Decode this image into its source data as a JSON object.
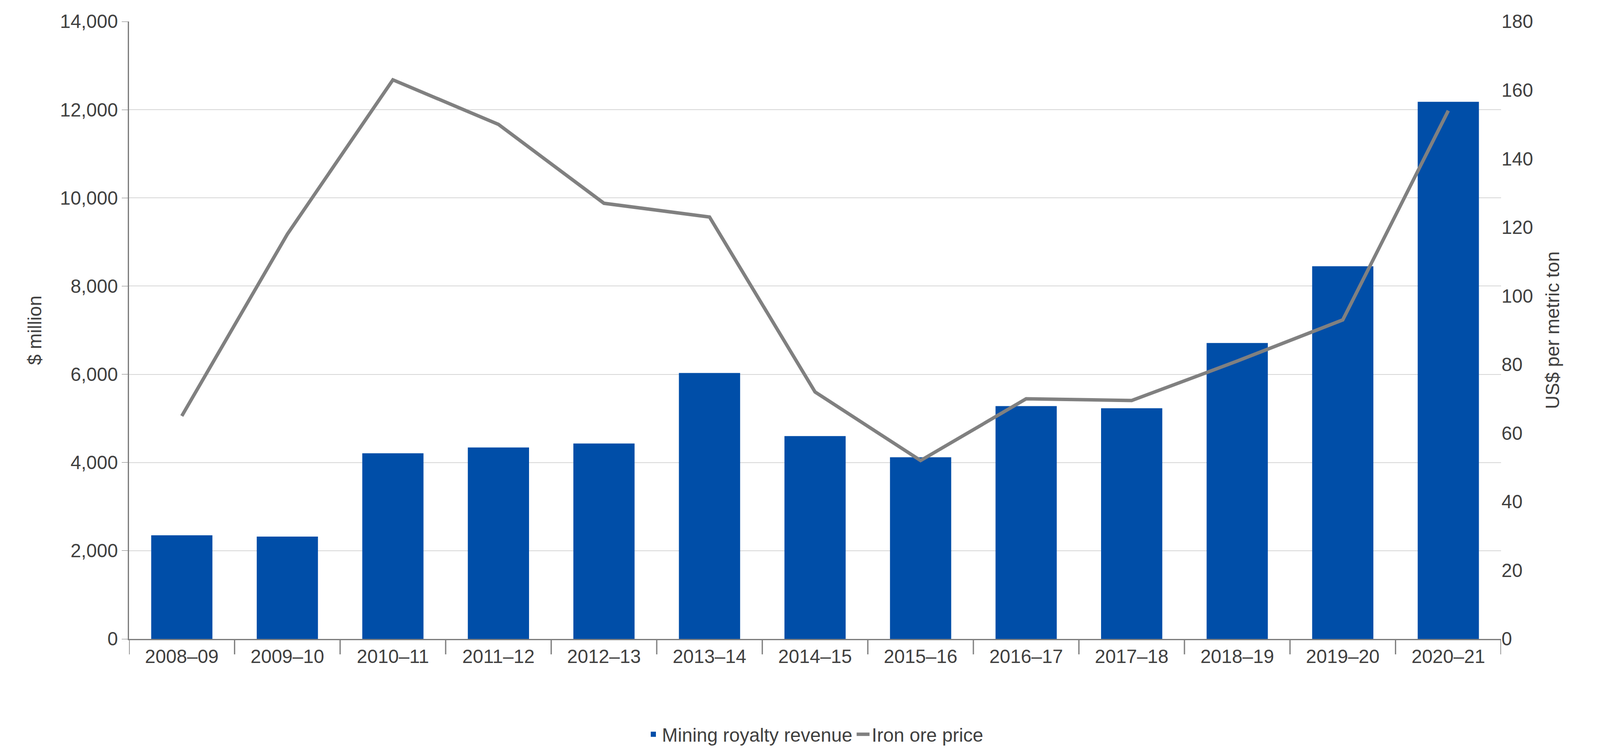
{
  "chart_data": {
    "type": "bar",
    "categories": [
      "2008–09",
      "2009–10",
      "2010–11",
      "2011–12",
      "2012–13",
      "2013–14",
      "2014–15",
      "2015–16",
      "2016–17",
      "2017–18",
      "2018–19",
      "2019–20",
      "2020–21"
    ],
    "series": [
      {
        "name": "Mining royalty revenue",
        "type": "bar",
        "color": "#004ea8",
        "values": [
          2350,
          2320,
          4210,
          4340,
          4430,
          6030,
          4600,
          4120,
          5280,
          5230,
          6710,
          8450,
          12180
        ]
      },
      {
        "name": "Iron ore price",
        "type": "line",
        "color": "#808080",
        "axis": "y2",
        "values": [
          65,
          118,
          163,
          150,
          127,
          123,
          72,
          52,
          70,
          69.5,
          81,
          93,
          154
        ]
      }
    ],
    "y_label": "$ million",
    "y2_label": "US$ per metric ton",
    "ylim": [
      0,
      14000
    ],
    "yticks": [
      0,
      {
        "value": 2000,
        "label": "2,000"
      },
      {
        "value": 4000,
        "label": "4,000"
      },
      {
        "value": 6000,
        "label": "6,000"
      },
      {
        "value": 8000,
        "label": "8,000"
      },
      {
        "value": 10000,
        "label": "10,000"
      },
      {
        "value": 12000,
        "label": "12,000"
      },
      {
        "value": 14000,
        "label": "14,000"
      }
    ],
    "y2lim": [
      0,
      180
    ],
    "y2ticks": [
      0,
      20,
      40,
      60,
      80,
      100,
      120,
      140,
      160,
      180
    ],
    "grid": true,
    "legend": "bottom"
  }
}
